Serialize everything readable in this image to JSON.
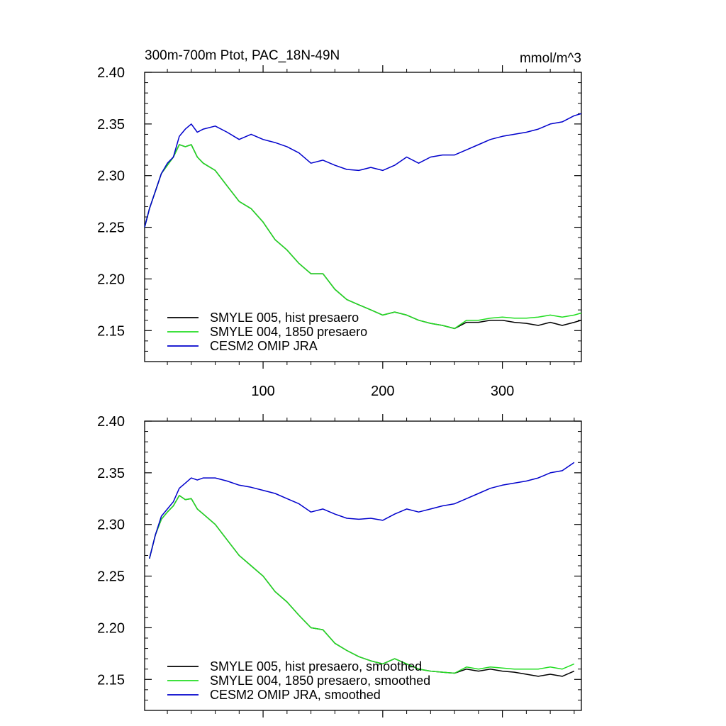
{
  "chart_data": [
    {
      "type": "line",
      "title": "300m-700m Ptot, PAC_18N-49N",
      "units": "mmol/m^3",
      "xlim": [
        1,
        366
      ],
      "ylim": [
        2.12,
        2.4
      ],
      "x_ticks": [
        100,
        200,
        300
      ],
      "y_ticks": [
        2.15,
        2.2,
        2.25,
        2.3,
        2.35,
        2.4
      ],
      "y_tick_labels": [
        "2.15",
        "2.20",
        "2.25",
        "2.30",
        "2.35",
        "2.40"
      ],
      "x_tick_labels": [
        "100",
        "200",
        "300"
      ],
      "legend_position": "bottom-left",
      "series": [
        {
          "name": "SMYLE 005, hist presaero",
          "color": "#000000",
          "x": [
            1,
            5,
            10,
            15,
            20,
            25,
            30,
            35,
            40,
            45,
            50,
            60,
            70,
            80,
            90,
            100,
            110,
            120,
            130,
            140,
            150,
            160,
            170,
            180,
            190,
            200,
            210,
            220,
            230,
            240,
            250,
            260,
            270,
            280,
            290,
            300,
            310,
            320,
            330,
            340,
            350,
            360,
            366
          ],
          "values": [
            2.25,
            2.268,
            2.285,
            2.302,
            2.31,
            2.318,
            2.33,
            2.328,
            2.33,
            2.318,
            2.312,
            2.305,
            2.29,
            2.275,
            2.268,
            2.255,
            2.238,
            2.228,
            2.215,
            2.205,
            2.205,
            2.19,
            2.18,
            2.175,
            2.17,
            2.165,
            2.168,
            2.165,
            2.16,
            2.157,
            2.155,
            2.152,
            2.158,
            2.158,
            2.16,
            2.16,
            2.158,
            2.157,
            2.155,
            2.158,
            2.155,
            2.158,
            2.16
          ]
        },
        {
          "name": "SMYLE 004, 1850 presaero",
          "color": "#22dd22",
          "x": [
            1,
            5,
            10,
            15,
            20,
            25,
            30,
            35,
            40,
            45,
            50,
            60,
            70,
            80,
            90,
            100,
            110,
            120,
            130,
            140,
            150,
            160,
            170,
            180,
            190,
            200,
            210,
            220,
            230,
            240,
            250,
            260,
            270,
            280,
            290,
            300,
            310,
            320,
            330,
            340,
            350,
            360,
            366
          ],
          "values": [
            2.25,
            2.268,
            2.285,
            2.302,
            2.31,
            2.318,
            2.33,
            2.328,
            2.33,
            2.318,
            2.312,
            2.305,
            2.29,
            2.275,
            2.268,
            2.255,
            2.238,
            2.228,
            2.215,
            2.205,
            2.205,
            2.19,
            2.18,
            2.175,
            2.17,
            2.165,
            2.168,
            2.165,
            2.16,
            2.157,
            2.155,
            2.152,
            2.16,
            2.16,
            2.162,
            2.163,
            2.162,
            2.162,
            2.163,
            2.165,
            2.163,
            2.165,
            2.167
          ]
        },
        {
          "name": "CESM2 OMIP JRA",
          "color": "#0000cc",
          "x": [
            1,
            5,
            10,
            15,
            20,
            25,
            30,
            35,
            40,
            45,
            50,
            60,
            70,
            80,
            90,
            100,
            110,
            120,
            130,
            140,
            150,
            160,
            170,
            180,
            190,
            200,
            210,
            220,
            230,
            240,
            250,
            260,
            270,
            280,
            290,
            300,
            310,
            320,
            330,
            340,
            350,
            360,
            366
          ],
          "values": [
            2.25,
            2.268,
            2.285,
            2.302,
            2.312,
            2.318,
            2.338,
            2.345,
            2.35,
            2.342,
            2.345,
            2.348,
            2.342,
            2.335,
            2.34,
            2.335,
            2.332,
            2.328,
            2.322,
            2.312,
            2.315,
            2.31,
            2.306,
            2.305,
            2.308,
            2.305,
            2.31,
            2.318,
            2.312,
            2.318,
            2.32,
            2.32,
            2.325,
            2.33,
            2.335,
            2.338,
            2.34,
            2.342,
            2.345,
            2.35,
            2.352,
            2.358,
            2.36
          ]
        }
      ]
    },
    {
      "type": "line",
      "title": "",
      "xlim": [
        1,
        366
      ],
      "ylim": [
        2.12,
        2.4
      ],
      "x_ticks": [
        100,
        200,
        300
      ],
      "y_ticks": [
        2.15,
        2.2,
        2.25,
        2.3,
        2.35,
        2.4
      ],
      "y_tick_labels": [
        "2.15",
        "2.20",
        "2.25",
        "2.30",
        "2.35",
        "2.40"
      ],
      "legend_position": "bottom-left",
      "series": [
        {
          "name": "SMYLE 005, hist presaero, smoothed",
          "color": "#000000",
          "x": [
            5,
            10,
            15,
            20,
            25,
            30,
            35,
            40,
            45,
            50,
            60,
            70,
            80,
            90,
            100,
            110,
            120,
            130,
            140,
            150,
            160,
            170,
            180,
            190,
            200,
            210,
            220,
            230,
            240,
            250,
            260,
            270,
            280,
            290,
            300,
            310,
            320,
            330,
            340,
            350,
            360
          ],
          "values": [
            2.267,
            2.29,
            2.305,
            2.312,
            2.318,
            2.328,
            2.324,
            2.325,
            2.315,
            2.31,
            2.3,
            2.285,
            2.27,
            2.26,
            2.25,
            2.235,
            2.225,
            2.212,
            2.2,
            2.198,
            2.185,
            2.178,
            2.172,
            2.168,
            2.165,
            2.17,
            2.165,
            2.16,
            2.158,
            2.157,
            2.156,
            2.16,
            2.158,
            2.16,
            2.158,
            2.157,
            2.155,
            2.153,
            2.155,
            2.153,
            2.158
          ]
        },
        {
          "name": "SMYLE 004, 1850 presaero, smoothed",
          "color": "#22dd22",
          "x": [
            5,
            10,
            15,
            20,
            25,
            30,
            35,
            40,
            45,
            50,
            60,
            70,
            80,
            90,
            100,
            110,
            120,
            130,
            140,
            150,
            160,
            170,
            180,
            190,
            200,
            210,
            220,
            230,
            240,
            250,
            260,
            270,
            280,
            290,
            300,
            310,
            320,
            330,
            340,
            350,
            360
          ],
          "values": [
            2.267,
            2.29,
            2.305,
            2.312,
            2.318,
            2.328,
            2.324,
            2.325,
            2.315,
            2.31,
            2.3,
            2.285,
            2.27,
            2.26,
            2.25,
            2.235,
            2.225,
            2.212,
            2.2,
            2.198,
            2.185,
            2.178,
            2.172,
            2.168,
            2.165,
            2.17,
            2.165,
            2.16,
            2.158,
            2.157,
            2.156,
            2.162,
            2.16,
            2.162,
            2.161,
            2.16,
            2.16,
            2.16,
            2.162,
            2.16,
            2.165
          ]
        },
        {
          "name": "CESM2 OMIP JRA, smoothed",
          "color": "#0000cc",
          "x": [
            5,
            10,
            15,
            20,
            25,
            30,
            35,
            40,
            45,
            50,
            60,
            70,
            80,
            90,
            100,
            110,
            120,
            130,
            140,
            150,
            160,
            170,
            180,
            190,
            200,
            210,
            220,
            230,
            240,
            250,
            260,
            270,
            280,
            290,
            300,
            310,
            320,
            330,
            340,
            350,
            360
          ],
          "values": [
            2.267,
            2.29,
            2.308,
            2.315,
            2.322,
            2.335,
            2.34,
            2.345,
            2.343,
            2.345,
            2.345,
            2.342,
            2.338,
            2.336,
            2.333,
            2.33,
            2.325,
            2.32,
            2.312,
            2.315,
            2.31,
            2.306,
            2.305,
            2.306,
            2.304,
            2.31,
            2.315,
            2.312,
            2.315,
            2.318,
            2.32,
            2.325,
            2.33,
            2.335,
            2.338,
            2.34,
            2.342,
            2.345,
            2.35,
            2.352,
            2.36
          ]
        }
      ]
    }
  ]
}
